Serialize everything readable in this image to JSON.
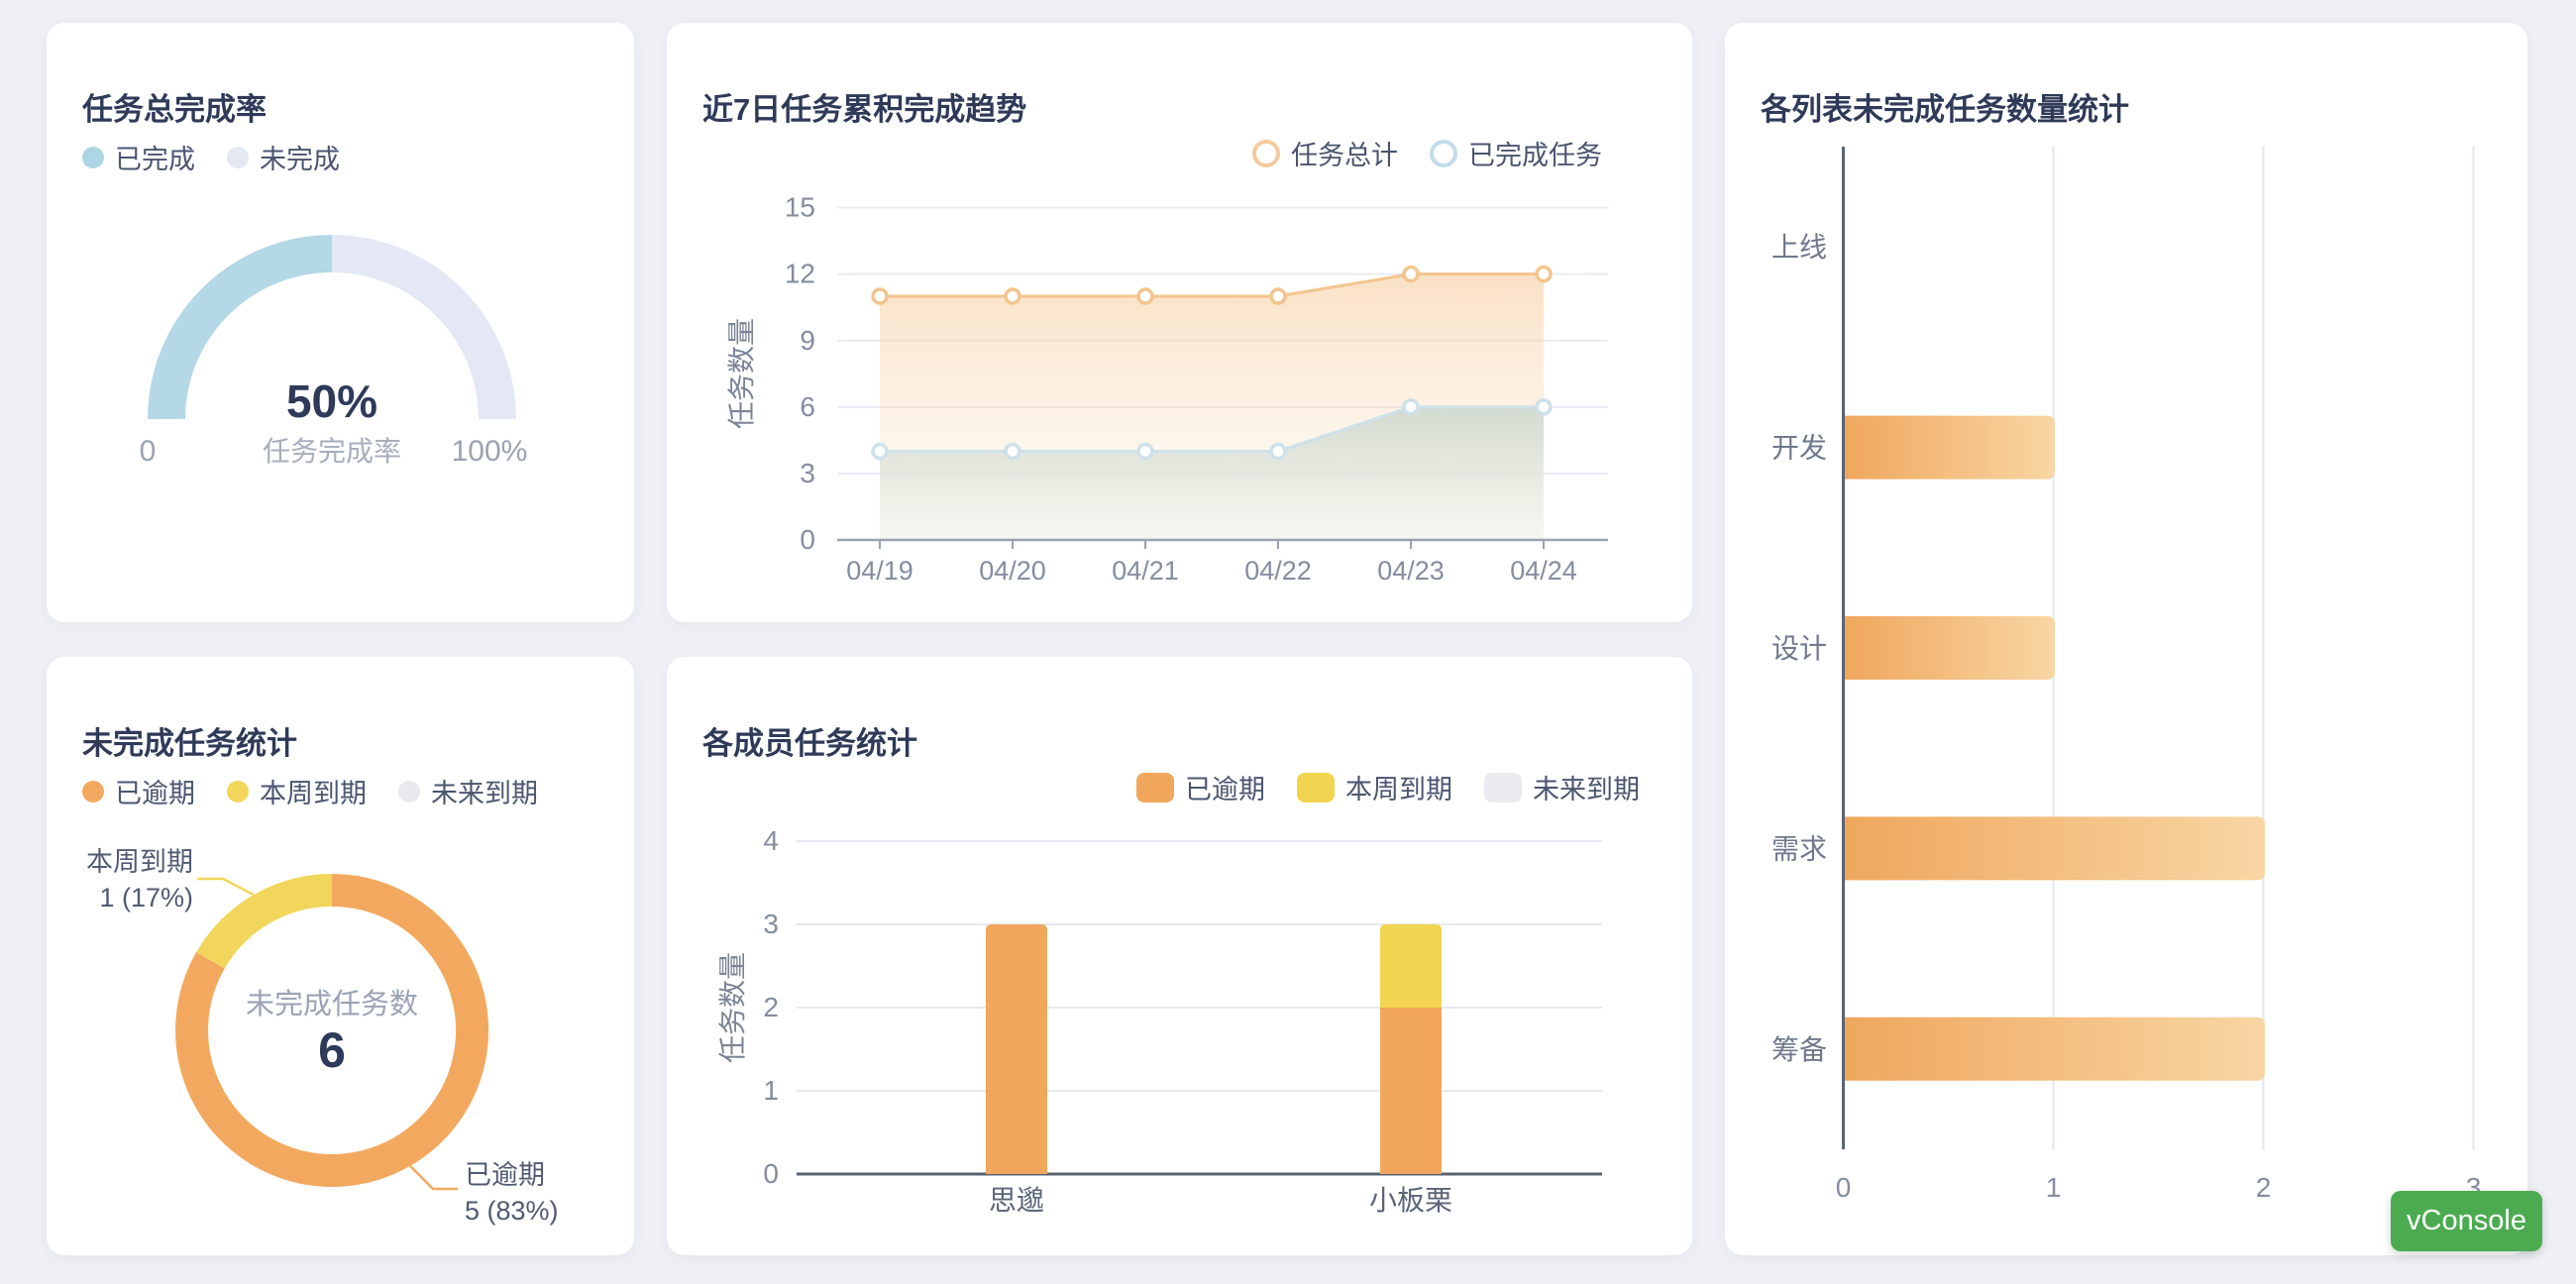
{
  "page": {
    "background": "#eef0f5",
    "card_background": "#ffffff"
  },
  "vconsole": {
    "label": "vConsole",
    "color": "#4cab51"
  },
  "chart_data": [
    {
      "id": "gauge",
      "type": "gauge",
      "title": "任务总完成率",
      "legend": [
        {
          "label": "已完成",
          "color": "#aed5e4"
        },
        {
          "label": "未完成",
          "color": "#e4e8f3"
        }
      ],
      "percent": 50,
      "value_label": "50%",
      "sub_label": "任务完成率",
      "axis_min_label": "0",
      "axis_max_label": "100%",
      "colors": {
        "filled": "#b5d8e6",
        "rest": "#e4e8f5",
        "value": "#2f3a59",
        "sub": "#a7aebc",
        "ticks": "#9aa2b2"
      }
    },
    {
      "id": "trend",
      "type": "area",
      "title": "近7日任务累积完成趋势",
      "legend": [
        {
          "label": "任务总计",
          "color": "#f3cb9b"
        },
        {
          "label": "已完成任务",
          "color": "#c3dcea"
        }
      ],
      "x": [
        "04/19",
        "04/20",
        "04/21",
        "04/22",
        "04/23",
        "04/24"
      ],
      "series": [
        {
          "name": "任务总计",
          "values": [
            11,
            11,
            11,
            11,
            12,
            12
          ],
          "line_color": "#f3c48e",
          "area_top": "rgba(245,194,138,0.50)",
          "area_bottom": "rgba(251,231,206,0.15)"
        },
        {
          "name": "已完成任务",
          "values": [
            4,
            4,
            4,
            4,
            6,
            6
          ],
          "line_color": "#cde1ea",
          "area_top": "rgba(203,214,205,0.85)",
          "area_bottom": "rgba(238,241,233,0.50)"
        }
      ],
      "ylabel": "任务数量",
      "yticks": [
        0,
        3,
        6,
        9,
        12,
        15
      ],
      "ylim": [
        0,
        15
      ]
    },
    {
      "id": "listbar",
      "type": "bar",
      "orientation": "horizontal",
      "title": "各列表未完成任务数量统计",
      "categories": [
        "上线",
        "开发",
        "设计",
        "需求",
        "筹备"
      ],
      "values": [
        0,
        1,
        1,
        2,
        2
      ],
      "xticks": [
        0,
        1,
        2,
        3
      ],
      "xlim": [
        0,
        3
      ],
      "colors": {
        "bar_start": "#efa75d",
        "bar_end": "#f8d6a4"
      }
    },
    {
      "id": "donut",
      "type": "pie",
      "title": "未完成任务统计",
      "legend": [
        {
          "label": "已逾期",
          "color": "#f2a95f"
        },
        {
          "label": "本周到期",
          "color": "#f2d65c"
        },
        {
          "label": "未来到期",
          "color": "#e7e9ef"
        }
      ],
      "center_title": "未完成任务数",
      "center_value": "6",
      "slices": [
        {
          "label": "已逾期",
          "value": 5,
          "pct": 83,
          "color": "#f2a95f",
          "callout_lines": [
            "已逾期",
            "5 (83%)"
          ]
        },
        {
          "label": "本周到期",
          "value": 1,
          "pct": 17,
          "color": "#f2d65c",
          "callout_lines": [
            "本周到期",
            "1 (17%)"
          ]
        },
        {
          "label": "未来到期",
          "value": 0,
          "pct": 0,
          "color": "#e7e9ef"
        }
      ]
    },
    {
      "id": "members",
      "type": "stacked-bar",
      "title": "各成员任务统计",
      "legend": [
        {
          "label": "已逾期",
          "color": "#f0a75c"
        },
        {
          "label": "本周到期",
          "color": "#f1d44f"
        },
        {
          "label": "未来到期",
          "color": "#e9ebf0"
        }
      ],
      "categories": [
        "思邈",
        "小板栗"
      ],
      "series": [
        {
          "name": "已逾期",
          "values": [
            3,
            2
          ],
          "color": "#f0a75c"
        },
        {
          "name": "本周到期",
          "values": [
            0,
            1
          ],
          "color": "#f1d44f"
        },
        {
          "name": "未来到期",
          "values": [
            0,
            0
          ],
          "color": "#e9ebf0"
        }
      ],
      "ylabel": "任务数量",
      "yticks": [
        0,
        1,
        2,
        3,
        4
      ],
      "ylim": [
        0,
        4
      ]
    }
  ]
}
